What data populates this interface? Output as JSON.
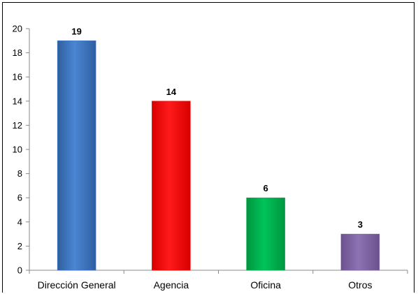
{
  "top_text": "",
  "chart_data": {
    "type": "bar",
    "categories": [
      "Dirección General",
      "Agencia",
      "Oficina",
      "Otros"
    ],
    "values": [
      19,
      14,
      6,
      3
    ],
    "colors": [
      "#3f78c8",
      "#ff0000",
      "#00b050",
      "#8064a2"
    ],
    "ylim": [
      0,
      20
    ],
    "yticks": [
      "0",
      "2",
      "4",
      "6",
      "8",
      "10",
      "12",
      "14",
      "16",
      "18",
      "20"
    ],
    "data_labels": [
      "19",
      "14",
      "6",
      "3"
    ],
    "title": "",
    "xlabel": "",
    "ylabel": "",
    "grid": false
  }
}
